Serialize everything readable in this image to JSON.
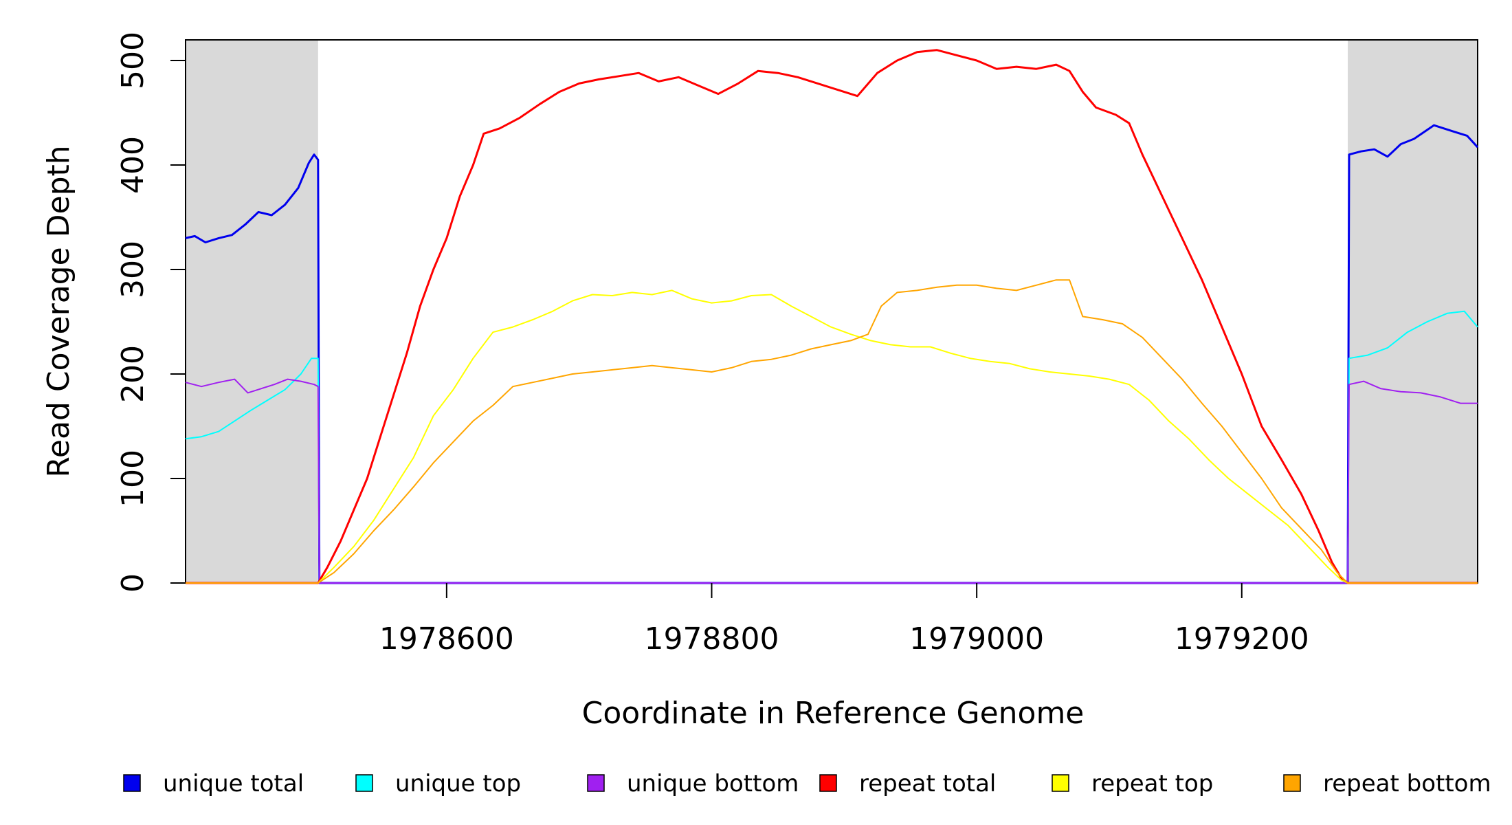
{
  "chart_data": {
    "type": "line",
    "title": "",
    "xlabel": "Coordinate in Reference Genome",
    "ylabel": "Read Coverage Depth",
    "xlim": [
      1978403,
      1979378
    ],
    "ylim": [
      0,
      520
    ],
    "x_ticks": [
      1978600,
      1978800,
      1979000,
      1979200
    ],
    "x_tick_labels": [
      "1978600",
      "1978800",
      "1979000",
      "1979200"
    ],
    "y_ticks": [
      0,
      100,
      200,
      300,
      400,
      500
    ],
    "y_tick_labels": [
      "0",
      "100",
      "200",
      "300",
      "400",
      "500"
    ],
    "grid": false,
    "legend_position": "bottom",
    "shaded_regions": [
      [
        1978403,
        1978503
      ],
      [
        1979280,
        1979378
      ]
    ],
    "series": [
      {
        "name": "unique total",
        "color": "#0000ee",
        "points": [
          [
            1978403,
            330
          ],
          [
            1978410,
            332
          ],
          [
            1978418,
            326
          ],
          [
            1978428,
            330
          ],
          [
            1978438,
            333
          ],
          [
            1978448,
            343
          ],
          [
            1978458,
            355
          ],
          [
            1978468,
            352
          ],
          [
            1978478,
            362
          ],
          [
            1978488,
            378
          ],
          [
            1978496,
            402
          ],
          [
            1978500,
            410
          ],
          [
            1978503,
            405
          ],
          [
            1978504,
            0
          ],
          [
            1979280,
            0
          ],
          [
            1979281,
            410
          ],
          [
            1979290,
            413
          ],
          [
            1979300,
            415
          ],
          [
            1979310,
            408
          ],
          [
            1979320,
            420
          ],
          [
            1979330,
            425
          ],
          [
            1979345,
            438
          ],
          [
            1979360,
            432
          ],
          [
            1979370,
            428
          ],
          [
            1979378,
            417
          ]
        ]
      },
      {
        "name": "unique top",
        "color": "#00ffff",
        "points": [
          [
            1978403,
            138
          ],
          [
            1978415,
            140
          ],
          [
            1978428,
            145
          ],
          [
            1978440,
            155
          ],
          [
            1978452,
            165
          ],
          [
            1978465,
            175
          ],
          [
            1978478,
            185
          ],
          [
            1978490,
            200
          ],
          [
            1978498,
            215
          ],
          [
            1978503,
            215
          ],
          [
            1978504,
            0
          ],
          [
            1979280,
            0
          ],
          [
            1979281,
            215
          ],
          [
            1979295,
            218
          ],
          [
            1979310,
            225
          ],
          [
            1979325,
            240
          ],
          [
            1979340,
            250
          ],
          [
            1979355,
            258
          ],
          [
            1979368,
            260
          ],
          [
            1979378,
            245
          ]
        ]
      },
      {
        "name": "unique bottom",
        "color": "#a020f0",
        "points": [
          [
            1978403,
            192
          ],
          [
            1978415,
            188
          ],
          [
            1978428,
            192
          ],
          [
            1978440,
            195
          ],
          [
            1978450,
            182
          ],
          [
            1978460,
            186
          ],
          [
            1978470,
            190
          ],
          [
            1978480,
            195
          ],
          [
            1978490,
            193
          ],
          [
            1978500,
            190
          ],
          [
            1978503,
            188
          ],
          [
            1978504,
            0
          ],
          [
            1979280,
            0
          ],
          [
            1979281,
            190
          ],
          [
            1979292,
            193
          ],
          [
            1979305,
            186
          ],
          [
            1979320,
            183
          ],
          [
            1979335,
            182
          ],
          [
            1979350,
            178
          ],
          [
            1979365,
            172
          ],
          [
            1979378,
            172
          ]
        ]
      },
      {
        "name": "repeat total",
        "color": "#ff0000",
        "points": [
          [
            1978403,
            0
          ],
          [
            1978503,
            0
          ],
          [
            1978510,
            15
          ],
          [
            1978520,
            40
          ],
          [
            1978530,
            70
          ],
          [
            1978540,
            100
          ],
          [
            1978550,
            140
          ],
          [
            1978560,
            180
          ],
          [
            1978570,
            220
          ],
          [
            1978580,
            265
          ],
          [
            1978590,
            300
          ],
          [
            1978600,
            330
          ],
          [
            1978610,
            370
          ],
          [
            1978620,
            400
          ],
          [
            1978628,
            430
          ],
          [
            1978640,
            435
          ],
          [
            1978655,
            445
          ],
          [
            1978670,
            458
          ],
          [
            1978685,
            470
          ],
          [
            1978700,
            478
          ],
          [
            1978715,
            482
          ],
          [
            1978730,
            485
          ],
          [
            1978745,
            488
          ],
          [
            1978760,
            480
          ],
          [
            1978775,
            484
          ],
          [
            1978790,
            476
          ],
          [
            1978805,
            468
          ],
          [
            1978820,
            478
          ],
          [
            1978835,
            490
          ],
          [
            1978850,
            488
          ],
          [
            1978865,
            484
          ],
          [
            1978880,
            478
          ],
          [
            1978895,
            472
          ],
          [
            1978910,
            466
          ],
          [
            1978925,
            488
          ],
          [
            1978940,
            500
          ],
          [
            1978955,
            508
          ],
          [
            1978970,
            510
          ],
          [
            1978985,
            505
          ],
          [
            1979000,
            500
          ],
          [
            1979015,
            492
          ],
          [
            1979030,
            494
          ],
          [
            1979045,
            492
          ],
          [
            1979060,
            496
          ],
          [
            1979070,
            490
          ],
          [
            1979080,
            470
          ],
          [
            1979090,
            455
          ],
          [
            1979105,
            448
          ],
          [
            1979115,
            440
          ],
          [
            1979125,
            410
          ],
          [
            1979140,
            370
          ],
          [
            1979155,
            330
          ],
          [
            1979170,
            290
          ],
          [
            1979185,
            245
          ],
          [
            1979200,
            200
          ],
          [
            1979215,
            150
          ],
          [
            1979230,
            118
          ],
          [
            1979245,
            85
          ],
          [
            1979258,
            50
          ],
          [
            1979268,
            20
          ],
          [
            1979275,
            5
          ],
          [
            1979280,
            0
          ],
          [
            1979378,
            0
          ]
        ]
      },
      {
        "name": "repeat top",
        "color": "#ffff00",
        "points": [
          [
            1978403,
            0
          ],
          [
            1978503,
            0
          ],
          [
            1978515,
            15
          ],
          [
            1978530,
            35
          ],
          [
            1978545,
            60
          ],
          [
            1978560,
            90
          ],
          [
            1978575,
            120
          ],
          [
            1978590,
            160
          ],
          [
            1978605,
            185
          ],
          [
            1978620,
            215
          ],
          [
            1978635,
            240
          ],
          [
            1978650,
            245
          ],
          [
            1978665,
            252
          ],
          [
            1978680,
            260
          ],
          [
            1978695,
            270
          ],
          [
            1978710,
            276
          ],
          [
            1978725,
            275
          ],
          [
            1978740,
            278
          ],
          [
            1978755,
            276
          ],
          [
            1978770,
            280
          ],
          [
            1978785,
            272
          ],
          [
            1978800,
            268
          ],
          [
            1978815,
            270
          ],
          [
            1978830,
            275
          ],
          [
            1978845,
            276
          ],
          [
            1978860,
            265
          ],
          [
            1978875,
            255
          ],
          [
            1978890,
            245
          ],
          [
            1978905,
            238
          ],
          [
            1978920,
            232
          ],
          [
            1978935,
            228
          ],
          [
            1978950,
            226
          ],
          [
            1978965,
            226
          ],
          [
            1978980,
            220
          ],
          [
            1978995,
            215
          ],
          [
            1979010,
            212
          ],
          [
            1979025,
            210
          ],
          [
            1979040,
            205
          ],
          [
            1979055,
            202
          ],
          [
            1979070,
            200
          ],
          [
            1979085,
            198
          ],
          [
            1979100,
            195
          ],
          [
            1979115,
            190
          ],
          [
            1979130,
            175
          ],
          [
            1979145,
            155
          ],
          [
            1979160,
            138
          ],
          [
            1979175,
            118
          ],
          [
            1979190,
            100
          ],
          [
            1979205,
            85
          ],
          [
            1979220,
            70
          ],
          [
            1979235,
            55
          ],
          [
            1979250,
            35
          ],
          [
            1979265,
            15
          ],
          [
            1979275,
            3
          ],
          [
            1979280,
            0
          ],
          [
            1979378,
            0
          ]
        ]
      },
      {
        "name": "repeat bottom",
        "color": "#ffa500",
        "points": [
          [
            1978403,
            0
          ],
          [
            1978503,
            0
          ],
          [
            1978515,
            10
          ],
          [
            1978530,
            28
          ],
          [
            1978545,
            50
          ],
          [
            1978560,
            70
          ],
          [
            1978575,
            92
          ],
          [
            1978590,
            115
          ],
          [
            1978605,
            135
          ],
          [
            1978620,
            155
          ],
          [
            1978635,
            170
          ],
          [
            1978650,
            188
          ],
          [
            1978665,
            192
          ],
          [
            1978680,
            196
          ],
          [
            1978695,
            200
          ],
          [
            1978710,
            202
          ],
          [
            1978725,
            204
          ],
          [
            1978740,
            206
          ],
          [
            1978755,
            208
          ],
          [
            1978770,
            206
          ],
          [
            1978785,
            204
          ],
          [
            1978800,
            202
          ],
          [
            1978815,
            206
          ],
          [
            1978830,
            212
          ],
          [
            1978845,
            214
          ],
          [
            1978860,
            218
          ],
          [
            1978875,
            224
          ],
          [
            1978890,
            228
          ],
          [
            1978905,
            232
          ],
          [
            1978918,
            238
          ],
          [
            1978928,
            265
          ],
          [
            1978940,
            278
          ],
          [
            1978955,
            280
          ],
          [
            1978970,
            283
          ],
          [
            1978985,
            285
          ],
          [
            1979000,
            285
          ],
          [
            1979015,
            282
          ],
          [
            1979030,
            280
          ],
          [
            1979045,
            285
          ],
          [
            1979060,
            290
          ],
          [
            1979070,
            290
          ],
          [
            1979080,
            255
          ],
          [
            1979095,
            252
          ],
          [
            1979110,
            248
          ],
          [
            1979125,
            235
          ],
          [
            1979140,
            215
          ],
          [
            1979155,
            195
          ],
          [
            1979170,
            172
          ],
          [
            1979185,
            150
          ],
          [
            1979200,
            125
          ],
          [
            1979215,
            100
          ],
          [
            1979230,
            72
          ],
          [
            1979245,
            52
          ],
          [
            1979260,
            32
          ],
          [
            1979272,
            10
          ],
          [
            1979280,
            0
          ],
          [
            1979378,
            0
          ]
        ]
      }
    ]
  }
}
